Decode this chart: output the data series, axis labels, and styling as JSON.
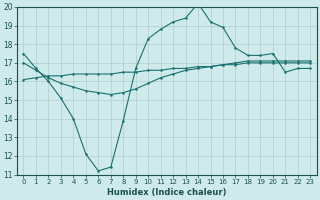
{
  "xlabel": "Humidex (Indice chaleur)",
  "background_color": "#ceeaea",
  "grid_color": "#b0cccc",
  "line_color": "#1a7070",
  "xlim": [
    -0.5,
    23.5
  ],
  "ylim": [
    11,
    20
  ],
  "xticks": [
    0,
    1,
    2,
    3,
    4,
    5,
    6,
    7,
    8,
    9,
    10,
    11,
    12,
    13,
    14,
    15,
    16,
    17,
    18,
    19,
    20,
    21,
    22,
    23
  ],
  "yticks": [
    11,
    12,
    13,
    14,
    15,
    16,
    17,
    18,
    19,
    20
  ],
  "line1_x": [
    0,
    1,
    2,
    3,
    4,
    5,
    6,
    7,
    8,
    9,
    10,
    11,
    12,
    13,
    14,
    15,
    16,
    17,
    18,
    19,
    20,
    21,
    22,
    23
  ],
  "line1_y": [
    17.5,
    16.7,
    16.0,
    15.1,
    14.0,
    12.1,
    11.2,
    11.4,
    13.9,
    16.7,
    18.3,
    18.8,
    19.2,
    19.4,
    20.2,
    19.2,
    18.9,
    17.8,
    17.4,
    17.4,
    17.5,
    16.5,
    16.7,
    16.7
  ],
  "line2_x": [
    0,
    1,
    2,
    3,
    4,
    5,
    6,
    7,
    8,
    9,
    10,
    11,
    12,
    13,
    14,
    15,
    16,
    17,
    18,
    19,
    20,
    21,
    22,
    23
  ],
  "line2_y": [
    17.0,
    16.6,
    16.2,
    15.9,
    15.7,
    15.5,
    15.4,
    15.3,
    15.4,
    15.6,
    15.9,
    16.2,
    16.4,
    16.6,
    16.7,
    16.8,
    16.9,
    17.0,
    17.1,
    17.1,
    17.1,
    17.1,
    17.1,
    17.1
  ],
  "line3_x": [
    0,
    1,
    2,
    3,
    4,
    5,
    6,
    7,
    8,
    9,
    10,
    11,
    12,
    13,
    14,
    15,
    16,
    17,
    18,
    19,
    20,
    21,
    22,
    23
  ],
  "line3_y": [
    16.1,
    16.2,
    16.3,
    16.3,
    16.4,
    16.4,
    16.4,
    16.4,
    16.5,
    16.5,
    16.6,
    16.6,
    16.7,
    16.7,
    16.8,
    16.8,
    16.9,
    16.9,
    17.0,
    17.0,
    17.0,
    17.0,
    17.0,
    17.0
  ]
}
